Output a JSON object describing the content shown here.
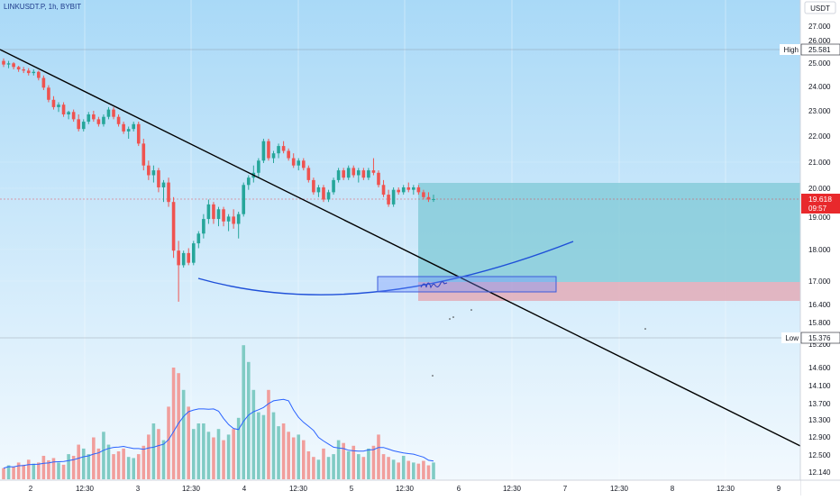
{
  "header": {
    "symbol_text": "LINKUSDT.P, 1h, BYBIT",
    "currency": "USDT"
  },
  "colors": {
    "bg_top": "#a9d9f7",
    "bg_bottom": "#f2f9fe",
    "bull": "#26a69a",
    "bear": "#ef5350",
    "bull_vol": "#80cbc4",
    "bear_vol": "#f19e9c",
    "trendline": "#000000",
    "curve": "#1e4fd8",
    "target_zone": "#7ec8d6",
    "stop_zone": "#e3a7b4",
    "current_price_bg": "#e8292c",
    "axis_text": "#131722",
    "time_text": "#131722"
  },
  "chart_data": {
    "type": "candlestick",
    "title": "",
    "price_axis": {
      "ticks": [
        "27.000",
        "26.000",
        "25.000",
        "24.000",
        "23.000",
        "22.000",
        "21.000",
        "20.000",
        "19.000",
        "18.000",
        "17.000",
        "16.400",
        "15.800",
        "15.200",
        "14.600",
        "14.100",
        "13.700",
        "13.300",
        "12.900",
        "12.500",
        "12.140"
      ]
    },
    "time_axis": {
      "ticks": [
        "2",
        "12:30",
        "3",
        "12:30",
        "4",
        "12:30",
        "5",
        "12:30",
        "6",
        "12:30",
        "7",
        "12:30",
        "8",
        "12:30",
        "9"
      ]
    },
    "markers": {
      "high": {
        "label": "High",
        "value": "25.581"
      },
      "low": {
        "label": "Low",
        "value": "15.376"
      },
      "current": {
        "value": "19.618",
        "countdown": "09:57"
      }
    },
    "candles_ohlc": [
      [
        25.3,
        25.4,
        25.05,
        25.15
      ],
      [
        25.15,
        25.3,
        25.0,
        25.2
      ],
      [
        25.2,
        25.25,
        24.95,
        25.05
      ],
      [
        25.05,
        25.1,
        24.85,
        24.95
      ],
      [
        24.95,
        25.05,
        24.8,
        24.9
      ],
      [
        24.9,
        25.0,
        24.7,
        24.8
      ],
      [
        24.8,
        24.95,
        24.7,
        24.85
      ],
      [
        24.85,
        24.9,
        24.5,
        24.6
      ],
      [
        24.6,
        24.7,
        24.1,
        24.2
      ],
      [
        24.2,
        24.3,
        23.6,
        23.7
      ],
      [
        23.7,
        23.85,
        23.3,
        23.4
      ],
      [
        23.4,
        23.6,
        23.2,
        23.5
      ],
      [
        23.5,
        23.6,
        23.0,
        23.1
      ],
      [
        23.1,
        23.25,
        22.9,
        23.2
      ],
      [
        23.2,
        23.3,
        22.8,
        22.9
      ],
      [
        22.9,
        23.1,
        22.4,
        22.5
      ],
      [
        22.5,
        22.9,
        22.4,
        22.8
      ],
      [
        22.8,
        23.2,
        22.7,
        23.1
      ],
      [
        23.1,
        23.25,
        22.8,
        22.9
      ],
      [
        22.9,
        23.0,
        22.6,
        22.7
      ],
      [
        22.7,
        23.1,
        22.6,
        23.0
      ],
      [
        23.0,
        23.4,
        22.9,
        23.3
      ],
      [
        23.3,
        23.4,
        22.9,
        23.0
      ],
      [
        23.0,
        23.1,
        22.6,
        22.7
      ],
      [
        22.7,
        22.8,
        22.3,
        22.4
      ],
      [
        22.4,
        22.6,
        22.1,
        22.5
      ],
      [
        22.5,
        22.8,
        22.4,
        22.7
      ],
      [
        22.7,
        22.8,
        21.8,
        21.9
      ],
      [
        21.9,
        22.1,
        20.8,
        21.0
      ],
      [
        21.0,
        21.2,
        20.4,
        20.6
      ],
      [
        20.6,
        21.0,
        20.3,
        20.8
      ],
      [
        20.8,
        20.9,
        19.9,
        20.1
      ],
      [
        20.1,
        20.4,
        19.5,
        20.3
      ],
      [
        20.3,
        20.5,
        19.3,
        19.5
      ],
      [
        19.5,
        19.7,
        17.2,
        17.5
      ],
      [
        17.5,
        17.9,
        15.4,
        16.9
      ],
      [
        16.9,
        17.5,
        16.8,
        17.4
      ],
      [
        17.4,
        17.6,
        16.9,
        17.0
      ],
      [
        17.0,
        17.9,
        16.9,
        17.8
      ],
      [
        17.8,
        18.3,
        17.6,
        18.2
      ],
      [
        18.2,
        19.0,
        18.0,
        18.8
      ],
      [
        18.8,
        19.6,
        18.6,
        19.4
      ],
      [
        19.4,
        19.5,
        18.6,
        18.8
      ],
      [
        18.8,
        19.3,
        18.5,
        19.2
      ],
      [
        19.2,
        19.3,
        18.5,
        18.7
      ],
      [
        18.7,
        19.0,
        18.3,
        18.9
      ],
      [
        18.9,
        19.2,
        18.4,
        18.6
      ],
      [
        18.6,
        19.1,
        18.0,
        19.0
      ],
      [
        19.0,
        20.3,
        18.9,
        20.2
      ],
      [
        20.2,
        20.6,
        20.0,
        20.5
      ],
      [
        20.5,
        21.0,
        20.3,
        20.7
      ],
      [
        20.7,
        21.3,
        20.5,
        21.2
      ],
      [
        21.2,
        22.1,
        21.1,
        22.0
      ],
      [
        22.0,
        22.1,
        21.2,
        21.3
      ],
      [
        21.3,
        21.6,
        21.1,
        21.5
      ],
      [
        21.5,
        21.9,
        21.3,
        21.8
      ],
      [
        21.8,
        22.0,
        21.5,
        21.6
      ],
      [
        21.6,
        21.7,
        21.2,
        21.3
      ],
      [
        21.3,
        21.5,
        20.9,
        21.0
      ],
      [
        21.0,
        21.3,
        20.8,
        21.2
      ],
      [
        21.2,
        21.3,
        20.8,
        20.9
      ],
      [
        20.9,
        21.0,
        20.3,
        20.4
      ],
      [
        20.4,
        20.5,
        19.8,
        19.9
      ],
      [
        19.9,
        20.2,
        19.7,
        20.1
      ],
      [
        20.1,
        20.2,
        19.5,
        19.6
      ],
      [
        19.6,
        20.0,
        19.5,
        19.9
      ],
      [
        19.9,
        20.5,
        19.8,
        20.4
      ],
      [
        20.4,
        20.9,
        20.3,
        20.8
      ],
      [
        20.8,
        20.9,
        20.4,
        20.5
      ],
      [
        20.5,
        21.0,
        20.4,
        20.9
      ],
      [
        20.9,
        21.0,
        20.5,
        20.6
      ],
      [
        20.6,
        20.9,
        20.3,
        20.8
      ],
      [
        20.8,
        20.9,
        20.4,
        20.5
      ],
      [
        20.5,
        20.9,
        20.4,
        20.8
      ],
      [
        20.8,
        21.3,
        20.6,
        20.7
      ],
      [
        20.7,
        20.8,
        20.1,
        20.2
      ],
      [
        20.2,
        20.4,
        19.7,
        19.8
      ],
      [
        19.8,
        20.0,
        19.3,
        19.4
      ],
      [
        19.4,
        20.1,
        19.3,
        20.0
      ],
      [
        20.0,
        20.1,
        19.8,
        19.9
      ],
      [
        19.9,
        20.2,
        19.8,
        20.1
      ],
      [
        20.1,
        20.3,
        19.9,
        20.0
      ],
      [
        20.0,
        20.2,
        19.8,
        20.1
      ],
      [
        20.1,
        20.2,
        19.8,
        19.9
      ],
      [
        19.9,
        20.0,
        19.6,
        19.7
      ],
      [
        19.7,
        19.9,
        19.5,
        19.6
      ],
      [
        19.6,
        19.8,
        19.5,
        19.618
      ]
    ],
    "volume": [
      0.2,
      0.25,
      0.22,
      0.3,
      0.26,
      0.35,
      0.28,
      0.3,
      0.42,
      0.34,
      0.38,
      0.3,
      0.26,
      0.45,
      0.42,
      0.62,
      0.55,
      0.45,
      0.75,
      0.55,
      0.85,
      0.62,
      0.45,
      0.5,
      0.55,
      0.4,
      0.38,
      0.45,
      0.6,
      0.8,
      1.0,
      0.9,
      0.7,
      1.3,
      2.0,
      1.9,
      1.6,
      1.3,
      0.9,
      1.0,
      1.0,
      0.85,
      0.75,
      0.9,
      0.7,
      0.8,
      0.9,
      1.1,
      2.4,
      2.1,
      1.6,
      1.2,
      1.15,
      1.6,
      1.2,
      0.95,
      1.0,
      0.85,
      0.75,
      0.8,
      0.7,
      0.5,
      0.4,
      0.35,
      0.55,
      0.4,
      0.45,
      0.7,
      0.65,
      0.5,
      0.6,
      0.45,
      0.4,
      0.55,
      0.6,
      0.8,
      0.45,
      0.4,
      0.35,
      0.3,
      0.42,
      0.33,
      0.3,
      0.28,
      0.33,
      0.25,
      0.3
    ]
  }
}
